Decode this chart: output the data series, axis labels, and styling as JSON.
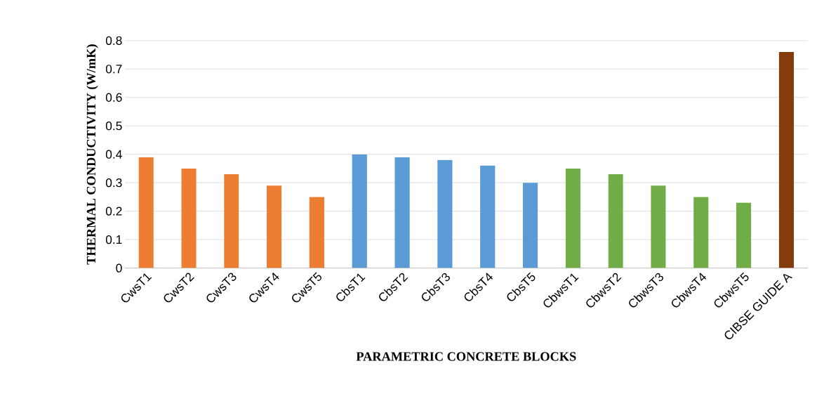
{
  "chart_data": {
    "type": "bar",
    "xlabel": "PARAMETRIC CONCRETE BLOCKS",
    "ylabel": "THERMAL CONDUCTIVITY (W/mK)",
    "categories": [
      "CwsT1",
      "CwsT2",
      "CwsT3",
      "CwsT4",
      "CwsT5",
      "CbsT1",
      "CbsT2",
      "CbsT3",
      "CbsT4",
      "CbsT5",
      "CbwsT1",
      "CbwsT2",
      "CbwsT3",
      "CbwsT4",
      "CbwsT5",
      "CIBSE GUIDE A"
    ],
    "values": [
      0.39,
      0.35,
      0.33,
      0.29,
      0.25,
      0.4,
      0.39,
      0.38,
      0.36,
      0.3,
      0.35,
      0.33,
      0.29,
      0.25,
      0.23,
      0.76
    ],
    "colors": [
      "#ed7d31",
      "#ed7d31",
      "#ed7d31",
      "#ed7d31",
      "#ed7d31",
      "#5b9bd5",
      "#5b9bd5",
      "#5b9bd5",
      "#5b9bd5",
      "#5b9bd5",
      "#70ad47",
      "#70ad47",
      "#70ad47",
      "#70ad47",
      "#70ad47",
      "#843c0c"
    ],
    "ylim": [
      0,
      0.8
    ],
    "yticks": [
      0,
      0.1,
      0.2,
      0.3,
      0.4,
      0.5,
      0.6,
      0.7,
      0.8
    ],
    "grid": "y"
  }
}
